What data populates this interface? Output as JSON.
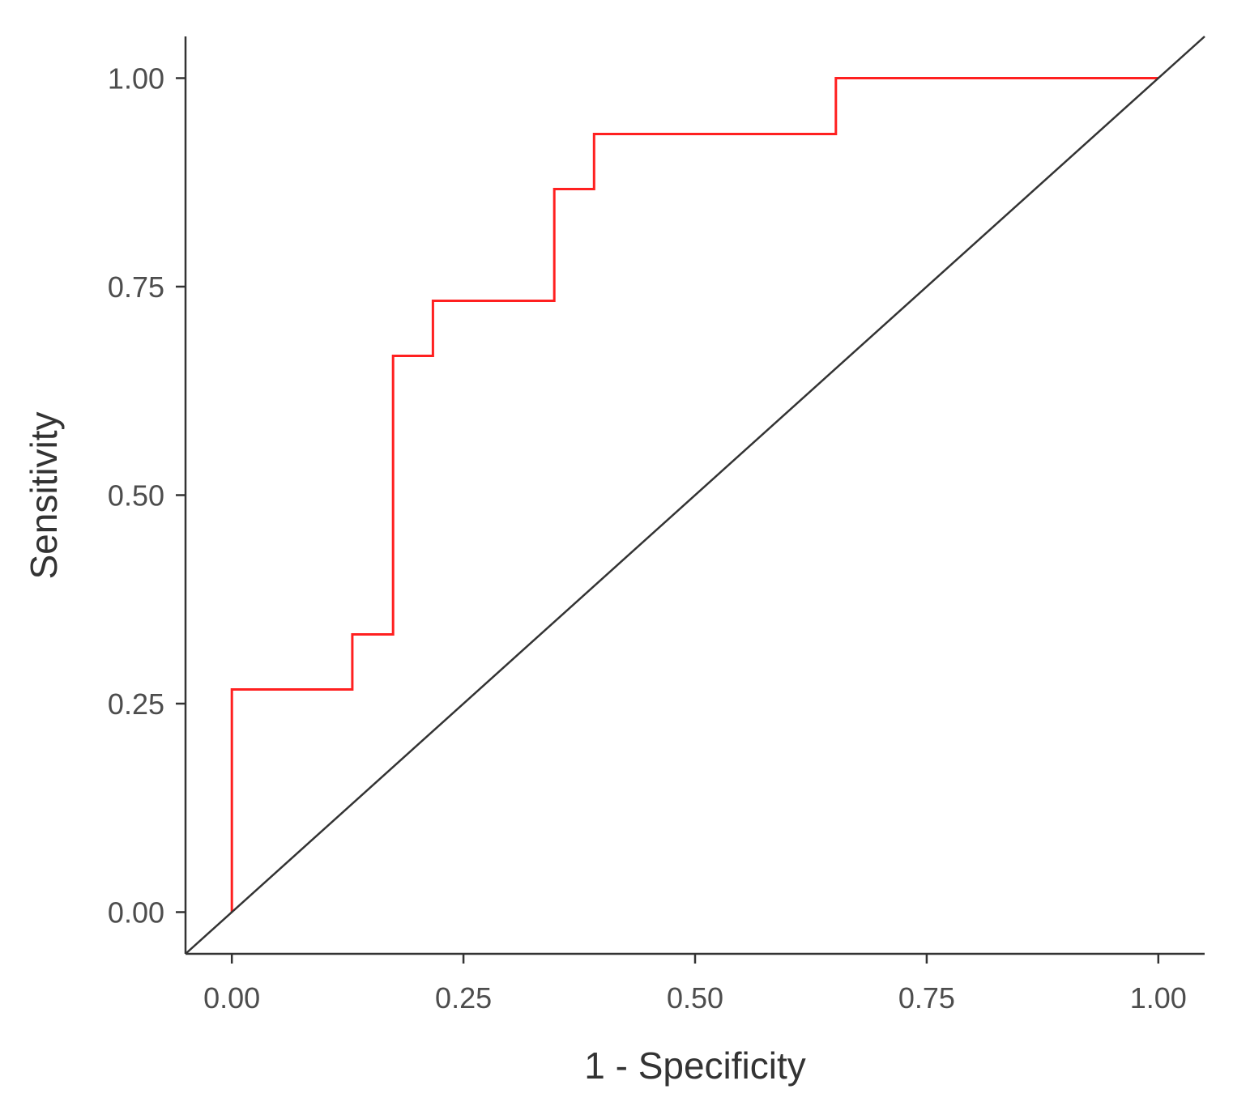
{
  "chart_data": {
    "type": "line",
    "title": "",
    "xlabel": "1 - Specificity",
    "ylabel": "Sensitivity",
    "xlim": [
      -0.05,
      1.05
    ],
    "ylim": [
      -0.05,
      1.05
    ],
    "x_ticks": [
      {
        "value": 0.0,
        "label": "0.00"
      },
      {
        "value": 0.25,
        "label": "0.25"
      },
      {
        "value": 0.5,
        "label": "0.50"
      },
      {
        "value": 0.75,
        "label": "0.75"
      },
      {
        "value": 1.0,
        "label": "1.00"
      }
    ],
    "y_ticks": [
      {
        "value": 0.0,
        "label": "0.00"
      },
      {
        "value": 0.25,
        "label": "0.25"
      },
      {
        "value": 0.5,
        "label": "0.50"
      },
      {
        "value": 0.75,
        "label": "0.75"
      },
      {
        "value": 1.0,
        "label": "1.00"
      }
    ],
    "grid": false,
    "legend": "none",
    "series": [
      {
        "style": "step",
        "color": "#ff2020",
        "points": [
          [
            0.0,
            0.0
          ],
          [
            0.0,
            0.267
          ],
          [
            0.13,
            0.267
          ],
          [
            0.13,
            0.333
          ],
          [
            0.174,
            0.333
          ],
          [
            0.174,
            0.667
          ],
          [
            0.217,
            0.667
          ],
          [
            0.217,
            0.733
          ],
          [
            0.348,
            0.733
          ],
          [
            0.348,
            0.867
          ],
          [
            0.391,
            0.867
          ],
          [
            0.391,
            0.933
          ],
          [
            0.652,
            0.933
          ],
          [
            0.652,
            1.0
          ],
          [
            1.0,
            1.0
          ]
        ]
      },
      {
        "style": "reference",
        "color": "#333333",
        "points": [
          [
            -0.05,
            -0.05
          ],
          [
            1.05,
            1.05
          ]
        ]
      }
    ]
  }
}
